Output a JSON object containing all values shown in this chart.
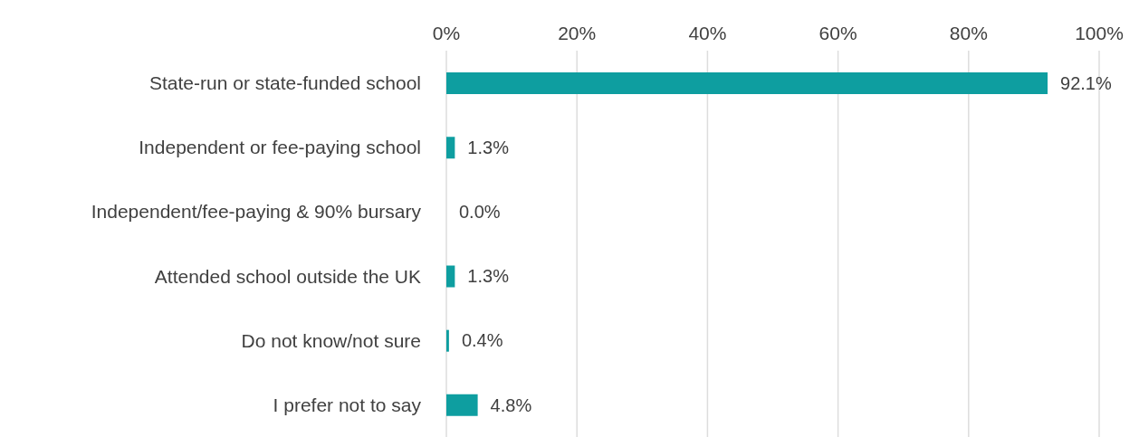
{
  "chart_data": {
    "type": "bar",
    "orientation": "horizontal",
    "categories": [
      "State-run or state-funded school",
      "Independent or fee-paying school",
      "Independent/fee-paying & 90% bursary",
      "Attended school outside the UK",
      "Do not know/not sure",
      "I prefer not to say"
    ],
    "values": [
      92.1,
      1.3,
      0.0,
      1.3,
      0.4,
      4.8
    ],
    "value_labels": [
      "92.1%",
      "1.3%",
      "0.0%",
      "1.3%",
      "0.4%",
      "4.8%"
    ],
    "color": "#0e9ea0",
    "xlim": [
      0,
      100
    ],
    "xticks": [
      {
        "value": 0,
        "label": "0%"
      },
      {
        "value": 20,
        "label": "20%"
      },
      {
        "value": 40,
        "label": "40%"
      },
      {
        "value": 60,
        "label": "60%"
      },
      {
        "value": 80,
        "label": "80%"
      },
      {
        "value": 100,
        "label": "100%"
      }
    ],
    "grid": "x",
    "legend": false
  }
}
